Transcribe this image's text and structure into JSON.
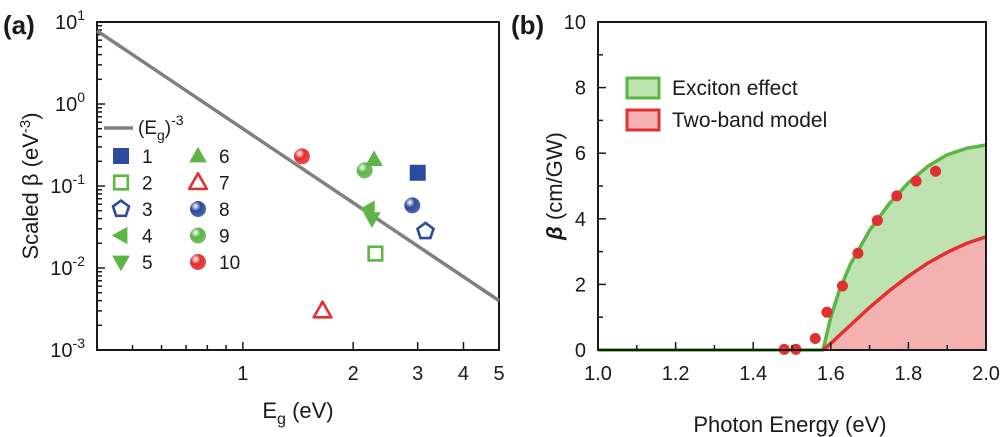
{
  "chart_data": [
    {
      "panel": "(a)",
      "type": "scatter",
      "xlabel": "Eg (eV)",
      "xlabel_main": "E",
      "xlabel_sub": "g",
      "xlabel_unit": " (eV)",
      "ylabel": "Scaled β (eV-3)",
      "ylabel_main": "Scaled β (eV",
      "ylabel_sup": "-3",
      "ylabel_end": ")",
      "x_scale": "log",
      "y_scale": "log",
      "xlim": [
        0.4,
        5
      ],
      "ylim": [
        0.001,
        10
      ],
      "xticks": [
        {
          "value": 1,
          "label": "1"
        },
        {
          "value": 2,
          "label": "2"
        },
        {
          "value": 3,
          "label": "3"
        },
        {
          "value": 4,
          "label": "4"
        },
        {
          "value": 5,
          "label": "5"
        }
      ],
      "yticks": [
        {
          "value": 10,
          "main": "10",
          "sup": "1"
        },
        {
          "value": 1,
          "main": "10",
          "sup": "0"
        },
        {
          "value": 0.1,
          "main": "10",
          "sup": "-1"
        },
        {
          "value": 0.01,
          "main": "10",
          "sup": "-2"
        },
        {
          "value": 0.001,
          "main": "10",
          "sup": "-3"
        }
      ],
      "fit_line": {
        "label_main": "(E",
        "label_sub": "g",
        "label_end": ")",
        "label_sup": "-3",
        "coefficient": 0.5,
        "exponent": -3,
        "color": "#808080"
      },
      "series": [
        {
          "name": "1",
          "marker": "square",
          "color": "#2e4a9e",
          "filled": true,
          "x": 3.0,
          "y": 0.145
        },
        {
          "name": "2",
          "marker": "square",
          "color": "#5cb545",
          "filled": false,
          "x": 2.3,
          "y": 0.015
        },
        {
          "name": "3",
          "marker": "pentagon",
          "color": "#2e4a9e",
          "filled": false,
          "x": 3.15,
          "y": 0.028
        },
        {
          "name": "4",
          "marker": "triangle-left",
          "color": "#5cb545",
          "filled": true,
          "x": 2.2,
          "y": 0.052
        },
        {
          "name": "5",
          "marker": "triangle-down",
          "color": "#5cb545",
          "filled": true,
          "x": 2.25,
          "y": 0.04
        },
        {
          "name": "6",
          "marker": "triangle-up",
          "color": "#5cb545",
          "filled": true,
          "x": 2.28,
          "y": 0.21
        },
        {
          "name": "7",
          "marker": "triangle-up",
          "color": "#e03030",
          "filled": false,
          "x": 1.65,
          "y": 0.003
        },
        {
          "name": "8",
          "marker": "sphere",
          "color": "#2e4a9e",
          "filled": true,
          "x": 2.9,
          "y": 0.058
        },
        {
          "name": "9",
          "marker": "sphere",
          "color": "#5cb545",
          "filled": true,
          "x": 2.15,
          "y": 0.155
        },
        {
          "name": "10",
          "marker": "sphere",
          "color": "#e03030",
          "filled": true,
          "x": 1.45,
          "y": 0.23
        }
      ]
    },
    {
      "panel": "(b)",
      "type": "area",
      "xlabel": "Photon Energy (eV)",
      "ylabel": "β (cm/GW)",
      "ylabel_symbol": "β",
      "ylabel_unit": " (cm/GW)",
      "xlim": [
        1.0,
        2.0
      ],
      "ylim": [
        0,
        10
      ],
      "xticks": [
        "1.0",
        "1.2",
        "1.4",
        "1.6",
        "1.8",
        "2.0"
      ],
      "yticks": [
        "0",
        "2",
        "4",
        "6",
        "8",
        "10"
      ],
      "legend_position": "top-left",
      "series": [
        {
          "name": "Exciton effect",
          "type": "area",
          "fill": "#bfe3b0",
          "edge": "#5cb545",
          "x": [
            1.0,
            1.58,
            1.6,
            1.62,
            1.65,
            1.7,
            1.75,
            1.8,
            1.85,
            1.9,
            1.95,
            2.0
          ],
          "y": [
            0,
            0,
            1.0,
            1.75,
            2.6,
            3.65,
            4.45,
            5.1,
            5.6,
            5.95,
            6.15,
            6.25
          ]
        },
        {
          "name": "Two-band model",
          "type": "area",
          "fill": "#f4b1b1",
          "edge": "#e03030",
          "x": [
            1.58,
            1.6,
            1.65,
            1.7,
            1.75,
            1.8,
            1.85,
            1.9,
            1.95,
            2.0
          ],
          "y": [
            0,
            0.2,
            0.75,
            1.3,
            1.8,
            2.25,
            2.65,
            2.98,
            3.25,
            3.45
          ]
        },
        {
          "name": "",
          "type": "scatter",
          "color": "#e03030",
          "x": [
            1.48,
            1.51,
            1.56,
            1.59,
            1.63,
            1.67,
            1.72,
            1.77,
            1.82,
            1.87
          ],
          "y": [
            0.02,
            0.02,
            0.35,
            1.15,
            1.95,
            2.95,
            3.95,
            4.7,
            5.15,
            5.45
          ]
        }
      ]
    }
  ]
}
